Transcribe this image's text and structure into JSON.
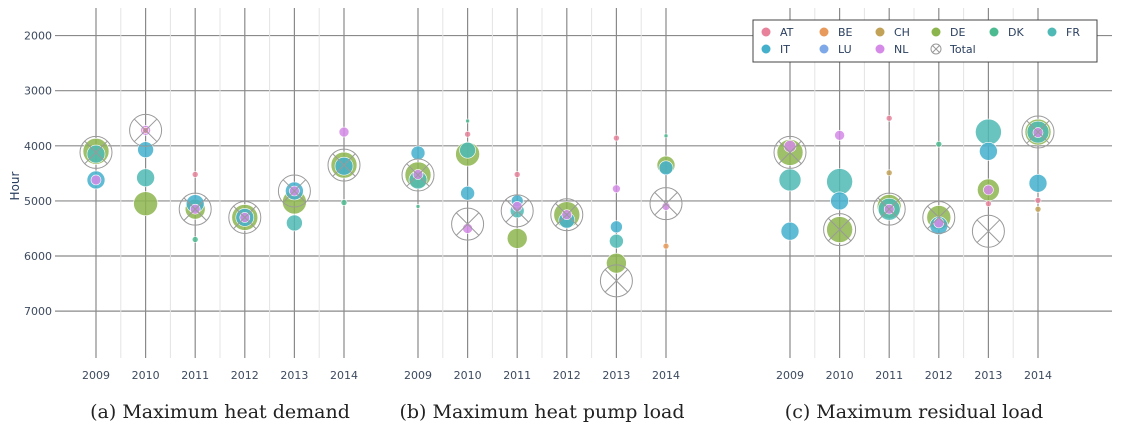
{
  "chart_data": {
    "type": "scatter",
    "ylabel": "Hour",
    "yticks": [
      2000,
      3000,
      4000,
      5000,
      6000,
      7000
    ],
    "ylim": [
      1500,
      7850
    ],
    "y_reversed": true,
    "grid": true,
    "legend_placement": "top-right",
    "legend": [
      {
        "name": "AT",
        "color": "#e8829b"
      },
      {
        "name": "BE",
        "color": "#e89a5c"
      },
      {
        "name": "CH",
        "color": "#c2a257"
      },
      {
        "name": "DE",
        "color": "#8db54d"
      },
      {
        "name": "DK",
        "color": "#4dbb91"
      },
      {
        "name": "FR",
        "color": "#4fbab5"
      },
      {
        "name": "IT",
        "color": "#44b0cc"
      },
      {
        "name": "LU",
        "color": "#7fa8e8"
      },
      {
        "name": "NL",
        "color": "#d58ae8"
      },
      {
        "name": "Total",
        "color": "#999999"
      }
    ],
    "panels": [
      {
        "caption": "(a) Maximum heat demand",
        "years": [
          "2009",
          "2010",
          "2011",
          "2012",
          "2013",
          "2014"
        ],
        "points": [
          {
            "year": "2009",
            "country": "DE",
            "y": 4100,
            "size": 13
          },
          {
            "year": "2009",
            "country": "FR",
            "y": 4150,
            "size": 9
          },
          {
            "year": "2009",
            "country": "IT",
            "y": 4620,
            "size": 9
          },
          {
            "year": "2009",
            "country": "NL",
            "y": 4620,
            "size": 5
          },
          {
            "year": "2009",
            "country": "Total",
            "y": 4120,
            "size": 16
          },
          {
            "year": "2010",
            "country": "Total",
            "y": 3720,
            "size": 16
          },
          {
            "year": "2010",
            "country": "NL",
            "y": 3720,
            "size": 5
          },
          {
            "year": "2010",
            "country": "AT",
            "y": 3720,
            "size": 3
          },
          {
            "year": "2010",
            "country": "IT",
            "y": 4070,
            "size": 8
          },
          {
            "year": "2010",
            "country": "FR",
            "y": 4580,
            "size": 9
          },
          {
            "year": "2010",
            "country": "DE",
            "y": 5050,
            "size": 12
          },
          {
            "year": "2011",
            "country": "AT",
            "y": 4520,
            "size": 3
          },
          {
            "year": "2011",
            "country": "IT",
            "y": 5050,
            "size": 9
          },
          {
            "year": "2011",
            "country": "DE",
            "y": 5150,
            "size": 10
          },
          {
            "year": "2011",
            "country": "NL",
            "y": 5150,
            "size": 5
          },
          {
            "year": "2011",
            "country": "Total",
            "y": 5150,
            "size": 16
          },
          {
            "year": "2011",
            "country": "DK",
            "y": 5700,
            "size": 3
          },
          {
            "year": "2012",
            "country": "DE",
            "y": 5300,
            "size": 13
          },
          {
            "year": "2012",
            "country": "IT",
            "y": 5300,
            "size": 9
          },
          {
            "year": "2012",
            "country": "NL",
            "y": 5300,
            "size": 5
          },
          {
            "year": "2012",
            "country": "Total",
            "y": 5300,
            "size": 16
          },
          {
            "year": "2013",
            "country": "Total",
            "y": 4820,
            "size": 16
          },
          {
            "year": "2013",
            "country": "DE",
            "y": 5020,
            "size": 12
          },
          {
            "year": "2013",
            "country": "IT",
            "y": 4820,
            "size": 9
          },
          {
            "year": "2013",
            "country": "NL",
            "y": 4820,
            "size": 5
          },
          {
            "year": "2013",
            "country": "FR",
            "y": 5400,
            "size": 8
          },
          {
            "year": "2014",
            "country": "NL",
            "y": 3750,
            "size": 5
          },
          {
            "year": "2014",
            "country": "DE",
            "y": 4350,
            "size": 13
          },
          {
            "year": "2014",
            "country": "IT",
            "y": 4370,
            "size": 9
          },
          {
            "year": "2014",
            "country": "Total",
            "y": 4350,
            "size": 16
          },
          {
            "year": "2014",
            "country": "DK",
            "y": 5030,
            "size": 3
          }
        ]
      },
      {
        "caption": "(b) Maximum heat pump load",
        "years": [
          "2009",
          "2010",
          "2011",
          "2012",
          "2013",
          "2014"
        ],
        "points": [
          {
            "year": "2009",
            "country": "IT",
            "y": 4130,
            "size": 7
          },
          {
            "year": "2009",
            "country": "DE",
            "y": 4530,
            "size": 13
          },
          {
            "year": "2009",
            "country": "FR",
            "y": 4620,
            "size": 9
          },
          {
            "year": "2009",
            "country": "NL",
            "y": 4520,
            "size": 5
          },
          {
            "year": "2009",
            "country": "Total",
            "y": 4530,
            "size": 16
          },
          {
            "year": "2009",
            "country": "DK",
            "y": 5100,
            "size": 2
          },
          {
            "year": "2010",
            "country": "DK",
            "y": 3550,
            "size": 2
          },
          {
            "year": "2010",
            "country": "AT",
            "y": 3790,
            "size": 3
          },
          {
            "year": "2010",
            "country": "DE",
            "y": 4150,
            "size": 12
          },
          {
            "year": "2010",
            "country": "FR",
            "y": 4080,
            "size": 8
          },
          {
            "year": "2010",
            "country": "IT",
            "y": 4860,
            "size": 7
          },
          {
            "year": "2010",
            "country": "NL",
            "y": 5500,
            "size": 5
          },
          {
            "year": "2010",
            "country": "Total",
            "y": 5420,
            "size": 16
          },
          {
            "year": "2011",
            "country": "AT",
            "y": 4520,
            "size": 3
          },
          {
            "year": "2011",
            "country": "IT",
            "y": 5000,
            "size": 6
          },
          {
            "year": "2011",
            "country": "NL",
            "y": 5100,
            "size": 5
          },
          {
            "year": "2011",
            "country": "FR",
            "y": 5180,
            "size": 7
          },
          {
            "year": "2011",
            "country": "Total",
            "y": 5180,
            "size": 16
          },
          {
            "year": "2011",
            "country": "DE",
            "y": 5680,
            "size": 10
          },
          {
            "year": "2012",
            "country": "DE",
            "y": 5250,
            "size": 13
          },
          {
            "year": "2012",
            "country": "IT",
            "y": 5350,
            "size": 8
          },
          {
            "year": "2012",
            "country": "NL",
            "y": 5250,
            "size": 5
          },
          {
            "year": "2012",
            "country": "Total",
            "y": 5250,
            "size": 16
          },
          {
            "year": "2013",
            "country": "AT",
            "y": 3860,
            "size": 3
          },
          {
            "year": "2013",
            "country": "NL",
            "y": 4780,
            "size": 4
          },
          {
            "year": "2013",
            "country": "IT",
            "y": 5470,
            "size": 6
          },
          {
            "year": "2013",
            "country": "FR",
            "y": 5730,
            "size": 7
          },
          {
            "year": "2013",
            "country": "DE",
            "y": 6130,
            "size": 10
          },
          {
            "year": "2013",
            "country": "Total",
            "y": 6450,
            "size": 16
          },
          {
            "year": "2014",
            "country": "DK",
            "y": 3820,
            "size": 2
          },
          {
            "year": "2014",
            "country": "DE",
            "y": 4350,
            "size": 9
          },
          {
            "year": "2014",
            "country": "IT",
            "y": 4400,
            "size": 7
          },
          {
            "year": "2014",
            "country": "Total",
            "y": 5050,
            "size": 16
          },
          {
            "year": "2014",
            "country": "NL",
            "y": 5100,
            "size": 4
          },
          {
            "year": "2014",
            "country": "BE",
            "y": 5820,
            "size": 3
          }
        ]
      },
      {
        "caption": "(c) Maximum residual load",
        "years": [
          "2009",
          "2010",
          "2011",
          "2012",
          "2013",
          "2014"
        ],
        "points": [
          {
            "year": "2009",
            "country": "NL",
            "y": 4010,
            "size": 6
          },
          {
            "year": "2009",
            "country": "DE",
            "y": 4120,
            "size": 13
          },
          {
            "year": "2009",
            "country": "Total",
            "y": 4120,
            "size": 16
          },
          {
            "year": "2009",
            "country": "FR",
            "y": 4620,
            "size": 11
          },
          {
            "year": "2009",
            "country": "IT",
            "y": 5550,
            "size": 9
          },
          {
            "year": "2010",
            "country": "NL",
            "y": 3810,
            "size": 5
          },
          {
            "year": "2010",
            "country": "FR",
            "y": 4650,
            "size": 13
          },
          {
            "year": "2010",
            "country": "IT",
            "y": 5000,
            "size": 9
          },
          {
            "year": "2010",
            "country": "DE",
            "y": 5520,
            "size": 13
          },
          {
            "year": "2010",
            "country": "Total",
            "y": 5520,
            "size": 16
          },
          {
            "year": "2011",
            "country": "AT",
            "y": 3500,
            "size": 3
          },
          {
            "year": "2011",
            "country": "CH",
            "y": 4490,
            "size": 3
          },
          {
            "year": "2011",
            "country": "DE",
            "y": 5100,
            "size": 12
          },
          {
            "year": "2011",
            "country": "FR",
            "y": 5150,
            "size": 11
          },
          {
            "year": "2011",
            "country": "NL",
            "y": 5150,
            "size": 5
          },
          {
            "year": "2011",
            "country": "Total",
            "y": 5150,
            "size": 16
          },
          {
            "year": "2012",
            "country": "DK",
            "y": 3970,
            "size": 3
          },
          {
            "year": "2012",
            "country": "DE",
            "y": 5300,
            "size": 12
          },
          {
            "year": "2012",
            "country": "IT",
            "y": 5450,
            "size": 9
          },
          {
            "year": "2012",
            "country": "NL",
            "y": 5400,
            "size": 5
          },
          {
            "year": "2012",
            "country": "Total",
            "y": 5300,
            "size": 16
          },
          {
            "year": "2013",
            "country": "FR",
            "y": 3750,
            "size": 13
          },
          {
            "year": "2013",
            "country": "IT",
            "y": 4100,
            "size": 9
          },
          {
            "year": "2013",
            "country": "DE",
            "y": 4800,
            "size": 11
          },
          {
            "year": "2013",
            "country": "NL",
            "y": 4800,
            "size": 5
          },
          {
            "year": "2013",
            "country": "AT",
            "y": 5050,
            "size": 3
          },
          {
            "year": "2013",
            "country": "Total",
            "y": 5550,
            "size": 16
          },
          {
            "year": "2014",
            "country": "DE",
            "y": 3750,
            "size": 13
          },
          {
            "year": "2014",
            "country": "FR",
            "y": 3750,
            "size": 11
          },
          {
            "year": "2014",
            "country": "NL",
            "y": 3760,
            "size": 5
          },
          {
            "year": "2014",
            "country": "Total",
            "y": 3750,
            "size": 16
          },
          {
            "year": "2014",
            "country": "IT",
            "y": 4680,
            "size": 9
          },
          {
            "year": "2014",
            "country": "AT",
            "y": 4990,
            "size": 3
          },
          {
            "year": "2014",
            "country": "CH",
            "y": 5150,
            "size": 3
          }
        ]
      }
    ]
  }
}
